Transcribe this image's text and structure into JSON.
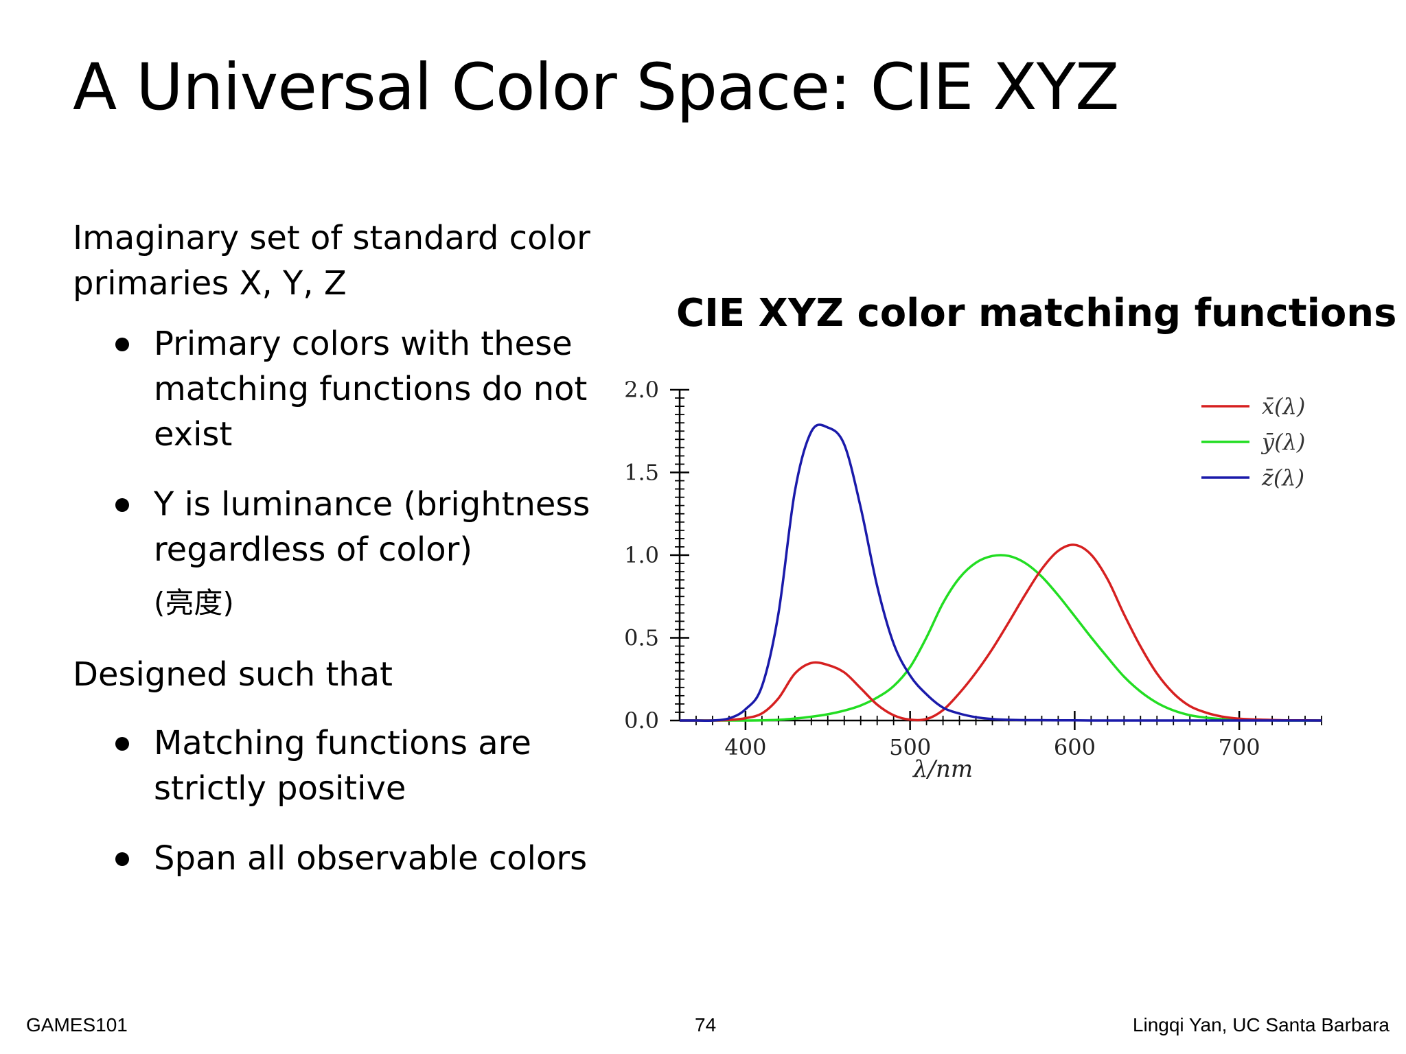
{
  "slide": {
    "title": "A Universal Color Space: CIE XYZ",
    "intro": "Imaginary set of standard color primaries X, Y, Z",
    "bullets_1": [
      "Primary colors with these matching functions do not exist",
      "Y is luminance (brightness regardless of color)"
    ],
    "note": "(亮度)",
    "designed": "Designed such that",
    "bullets_2": [
      "Matching functions are strictly positive",
      "Span all observable colors"
    ]
  },
  "footer": {
    "left": "GAMES101",
    "center": "74",
    "right": "Lingqi Yan, UC Santa Barbara"
  },
  "chart_data": {
    "type": "line",
    "title": "CIE XYZ color matching functions",
    "xlabel": "λ/nm",
    "ylabel": "",
    "xlim": [
      360,
      750
    ],
    "ylim": [
      0,
      2.0
    ],
    "xticks": [
      400,
      500,
      600,
      700
    ],
    "yticks": [
      "0.0",
      "0.5",
      "1.0",
      "1.5",
      "2.0"
    ],
    "grid": false,
    "legend_position": "top-right",
    "x": [
      360,
      370,
      380,
      390,
      400,
      410,
      420,
      430,
      440,
      450,
      460,
      470,
      480,
      490,
      500,
      510,
      520,
      530,
      540,
      550,
      560,
      570,
      580,
      590,
      600,
      610,
      620,
      630,
      640,
      650,
      660,
      670,
      680,
      690,
      700,
      710,
      720,
      730,
      740,
      750
    ],
    "series": [
      {
        "name": "x̄(λ)",
        "color": "#d62020",
        "values": [
          0,
          0,
          0,
          0.003,
          0.014,
          0.043,
          0.134,
          0.284,
          0.348,
          0.336,
          0.291,
          0.195,
          0.096,
          0.032,
          0.005,
          0.009,
          0.063,
          0.166,
          0.29,
          0.433,
          0.595,
          0.762,
          0.916,
          1.026,
          1.062,
          1.003,
          0.854,
          0.642,
          0.448,
          0.284,
          0.165,
          0.087,
          0.047,
          0.023,
          0.011,
          0.006,
          0.003,
          0.001,
          0.001,
          0
        ]
      },
      {
        "name": "ȳ(λ)",
        "color": "#22dd22",
        "values": [
          0,
          0,
          0,
          0,
          0,
          0.001,
          0.004,
          0.012,
          0.023,
          0.038,
          0.06,
          0.091,
          0.139,
          0.208,
          0.323,
          0.503,
          0.71,
          0.862,
          0.954,
          0.995,
          0.995,
          0.952,
          0.87,
          0.757,
          0.631,
          0.503,
          0.381,
          0.265,
          0.175,
          0.107,
          0.061,
          0.032,
          0.017,
          0.008,
          0.004,
          0.002,
          0.001,
          0,
          0,
          0
        ]
      },
      {
        "name": "z̄(λ)",
        "color": "#1a1aaa",
        "values": [
          0,
          0,
          0,
          0.013,
          0.068,
          0.207,
          0.646,
          1.386,
          1.747,
          1.772,
          1.669,
          1.288,
          0.813,
          0.465,
          0.272,
          0.158,
          0.078,
          0.042,
          0.02,
          0.009,
          0.004,
          0.002,
          0.002,
          0.001,
          0.001,
          0,
          0,
          0,
          0,
          0,
          0,
          0,
          0,
          0,
          0,
          0,
          0,
          0,
          0,
          0
        ]
      }
    ]
  }
}
